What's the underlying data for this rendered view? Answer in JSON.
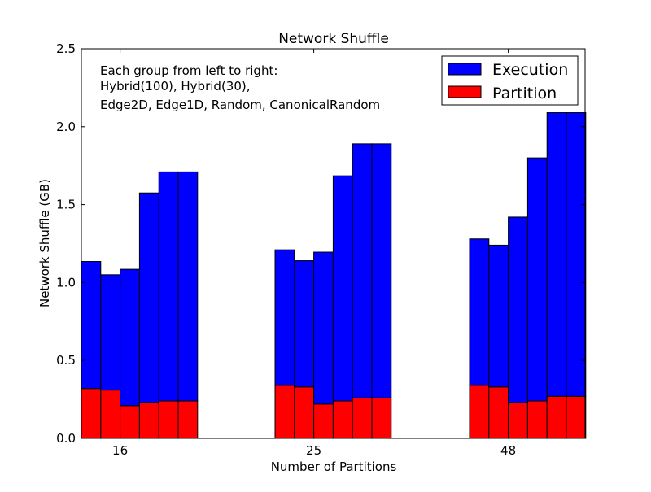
{
  "chart_data": {
    "type": "bar",
    "stacked": true,
    "title": "Network Shuffle",
    "xlabel": "Number of Partitions",
    "ylabel": "Network Shuffle (GB)",
    "ylim": [
      0,
      2.5
    ],
    "yticks": [
      "0.0",
      "0.5",
      "1.0",
      "1.5",
      "2.0",
      "2.5"
    ],
    "categories": [
      "16",
      "25",
      "48"
    ],
    "legend_position": "top-right",
    "annotation": [
      "Each group from left to right:",
      "Hybrid(100), Hybrid(30),",
      "Edge2D, Edge1D, Random, CanonicalRandom"
    ],
    "series": [
      {
        "name": "Partition",
        "color": "#ff0000",
        "values": [
          [
            0.32,
            0.31,
            0.21,
            0.23,
            0.24,
            0.24
          ],
          [
            0.34,
            0.33,
            0.22,
            0.24,
            0.26,
            0.26
          ],
          [
            0.34,
            0.33,
            0.23,
            0.24,
            0.27,
            0.27
          ]
        ]
      },
      {
        "name": "Execution",
        "color": "#0000ff",
        "values": [
          [
            0.815,
            0.74,
            0.875,
            1.345,
            1.47,
            1.47
          ],
          [
            0.87,
            0.81,
            0.975,
            1.445,
            1.63,
            1.63
          ],
          [
            0.94,
            0.91,
            1.19,
            1.56,
            1.82,
            1.82
          ]
        ]
      }
    ]
  }
}
